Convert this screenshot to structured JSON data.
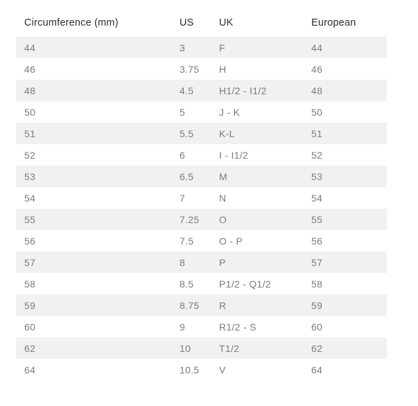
{
  "colors": {
    "background": "#ffffff",
    "stripe": "#f1f1f1",
    "header_text": "#2d2d2d",
    "body_text": "#7b7b7b"
  },
  "table": {
    "columns": [
      "Circumference (mm)",
      "US",
      "UK",
      "European"
    ],
    "column_keys": [
      "circumference",
      "us",
      "uk",
      "european"
    ],
    "rows": [
      {
        "circumference": "44",
        "us": "3",
        "uk": "F",
        "european": "44"
      },
      {
        "circumference": "46",
        "us": "3.75",
        "uk": "H",
        "european": "46"
      },
      {
        "circumference": "48",
        "us": "4.5",
        "uk": "H1/2 - I1/2",
        "european": "48"
      },
      {
        "circumference": "50",
        "us": "5",
        "uk": "J - K",
        "european": "50"
      },
      {
        "circumference": "51",
        "us": "5.5",
        "uk": "K-L",
        "european": "51"
      },
      {
        "circumference": "52",
        "us": "6",
        "uk": "I - I1/2",
        "european": "52"
      },
      {
        "circumference": "53",
        "us": "6.5",
        "uk": "M",
        "european": "53"
      },
      {
        "circumference": "54",
        "us": "7",
        "uk": "N",
        "european": "54"
      },
      {
        "circumference": "55",
        "us": "7.25",
        "uk": "O",
        "european": "55"
      },
      {
        "circumference": "56",
        "us": "7.5",
        "uk": "O - P",
        "european": "56"
      },
      {
        "circumference": "57",
        "us": "8",
        "uk": "P",
        "european": "57"
      },
      {
        "circumference": "58",
        "us": "8.5",
        "uk": "P1/2 - Q1/2",
        "european": "58"
      },
      {
        "circumference": "59",
        "us": "8.75",
        "uk": "R",
        "european": "59"
      },
      {
        "circumference": "60",
        "us": "9",
        "uk": "R1/2 - S",
        "european": "60"
      },
      {
        "circumference": "62",
        "us": "10",
        "uk": "T1/2",
        "european": "62"
      },
      {
        "circumference": "64",
        "us": "10.5",
        "uk": "V",
        "european": "64"
      }
    ]
  }
}
